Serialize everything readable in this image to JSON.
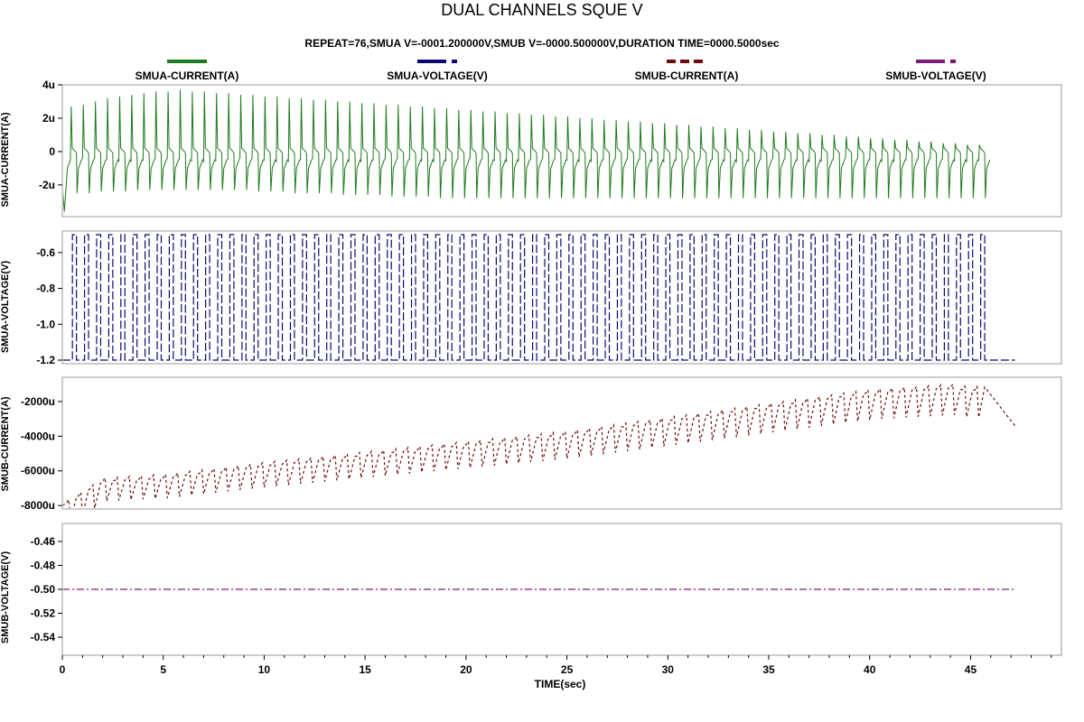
{
  "chart_data": {
    "type": "line",
    "title": "DUAL CHANNELS SQUE V",
    "subtitle": "REPEAT=76,SMUA V=-0001.200000V,SMUB V=-0000.500000V,DURATION TIME=0000.5000sec",
    "xlabel": "TIME(sec)",
    "xlim": [
      0,
      49.5
    ],
    "xticks": [
      0,
      5,
      10,
      15,
      20,
      25,
      30,
      35,
      40,
      45
    ],
    "xtick_labels": [
      "0",
      "5",
      "10",
      "15",
      "20",
      "25",
      "30",
      "35",
      "40",
      "45"
    ],
    "grid": false,
    "legend_position": "top",
    "legend": [
      {
        "label": "SMUA-CURRENT(A)",
        "color": "#1e7b1e",
        "style": "solid"
      },
      {
        "label": "SMUA-VOLTAGE(V)",
        "color": "#0a0a6e",
        "style": "dashed"
      },
      {
        "label": "SMUB-CURRENT(A)",
        "color": "#6e0a0a",
        "style": "dotted"
      },
      {
        "label": "SMUB-VOLTAGE(V)",
        "color": "#7a1a7a",
        "style": "dashdot"
      }
    ],
    "panels": [
      {
        "id": "smua-current",
        "ylabel": "SMUA-CURRENT(A)",
        "ylim": [
          -3.9,
          4.0
        ],
        "yticks": [
          4,
          2,
          0,
          -2
        ],
        "ytick_labels": [
          "4u",
          "2u",
          "0",
          "-2u"
        ],
        "unit_scale": "1e-6",
        "series": {
          "name": "SMUA-CURRENT(A)",
          "color": "#1e7b1e",
          "style": "solid",
          "pulse_period_sec": 0.6,
          "pulse_count": 76,
          "start_sec": 0.1,
          "end_sec": 47.2,
          "peak_values_uA": [
            2.7,
            2.8,
            3.0,
            3.2,
            3.3,
            3.4,
            3.5,
            3.6,
            3.6,
            3.7,
            3.6,
            3.6,
            3.5,
            3.5,
            3.4,
            3.4,
            3.3,
            3.3,
            3.2,
            3.2,
            3.1,
            3.1,
            3.0,
            3.0,
            2.9,
            2.9,
            2.8,
            2.8,
            2.7,
            2.7,
            2.6,
            2.6,
            2.5,
            2.5,
            2.4,
            2.4,
            2.3,
            2.3,
            2.2,
            2.2,
            2.1,
            2.1,
            2.0,
            2.0,
            1.9,
            1.9,
            1.8,
            1.8,
            1.7,
            1.7,
            1.6,
            1.6,
            1.5,
            1.5,
            1.4,
            1.4,
            1.3,
            1.3,
            1.2,
            1.2,
            1.1,
            1.1,
            1.0,
            1.0,
            0.9,
            0.9,
            0.8,
            0.8,
            0.7,
            0.7,
            0.6,
            0.6,
            0.5,
            0.5,
            0.4,
            0.4
          ],
          "trough_values_uA": [
            -2.5,
            -2.5,
            -2.4,
            -2.4,
            -2.4,
            -2.3,
            -2.3,
            -2.3,
            -2.3,
            -2.3,
            -2.3,
            -2.3,
            -2.3,
            -2.3,
            -2.3,
            -2.4,
            -2.4,
            -2.4,
            -2.5,
            -2.5,
            -2.5,
            -2.5,
            -2.6,
            -2.6,
            -2.6,
            -2.6,
            -2.7,
            -2.7,
            -2.7,
            -2.7,
            -2.8,
            -2.8,
            -2.8,
            -2.8,
            -2.8,
            -2.8,
            -2.8,
            -2.8,
            -2.8,
            -2.8,
            -2.8,
            -2.8,
            -2.8,
            -2.8,
            -2.8,
            -2.8,
            -2.8,
            -2.8,
            -2.8,
            -2.8,
            -2.8,
            -2.8,
            -2.8,
            -2.8,
            -2.8,
            -2.8,
            -2.8,
            -2.8,
            -2.8,
            -2.8,
            -2.8,
            -2.8,
            -2.8,
            -2.8,
            -2.8,
            -2.8,
            -2.8,
            -2.8,
            -2.8,
            -2.8,
            -2.8,
            -2.8,
            -2.8,
            -2.8,
            -2.8,
            -2.8
          ],
          "baseline_uA": -0.5,
          "initial_min_uA": -3.6
        }
      },
      {
        "id": "smua-voltage",
        "ylabel": "SMUA-VOLTAGE(V)",
        "ylim": [
          -1.22,
          -0.48
        ],
        "yticks": [
          -0.6,
          -0.8,
          -1.0,
          -1.2
        ],
        "ytick_labels": [
          "-0.6",
          "-0.8",
          "-1.0",
          "-1.2"
        ],
        "series": {
          "name": "SMUA-VOLTAGE(V)",
          "color": "#0a0a6e",
          "style": "dashed",
          "high_V": -0.5,
          "low_V": -1.2,
          "pulse_period_sec": 0.6,
          "pulse_width_sec": 0.2,
          "pulse_count": 76,
          "start_sec": 0.5,
          "end_sec": 47.2
        }
      },
      {
        "id": "smub-current",
        "ylabel": "SMUB-CURRENT(A)",
        "ylim": [
          -8200,
          -600
        ],
        "yticks": [
          -2000,
          -4000,
          -6000,
          -8000
        ],
        "ytick_labels": [
          "-2000u",
          "-4000u",
          "-6000u",
          "-8000u"
        ],
        "unit_scale": "1e-6",
        "series": {
          "name": "SMUB-CURRENT(A)",
          "color": "#6e0a0a",
          "style": "dotted",
          "start_uA": -8000,
          "trend_points": [
            [
              0,
              -8000
            ],
            [
              2,
              -6600
            ],
            [
              5,
              -6400
            ],
            [
              10,
              -5700
            ],
            [
              15,
              -5100
            ],
            [
              20,
              -4500
            ],
            [
              25,
              -3900
            ],
            [
              30,
              -3100
            ],
            [
              35,
              -2300
            ],
            [
              40,
              -1500
            ],
            [
              44,
              -1200
            ],
            [
              45,
              -1400
            ],
            [
              46.5,
              -900
            ],
            [
              47.2,
              -800
            ]
          ],
          "dip_depth_uA": 1600,
          "pulse_period_sec": 0.6,
          "pulse_count": 76,
          "end_sec": 47.2,
          "final_value_uA": -3400
        }
      },
      {
        "id": "smub-voltage",
        "ylabel": "SMUB-VOLTAGE(V)",
        "ylim": [
          -0.555,
          -0.445
        ],
        "yticks": [
          -0.46,
          -0.48,
          -0.5,
          -0.52,
          -0.54
        ],
        "ytick_labels": [
          "-0.46",
          "-0.48",
          "-0.50",
          "-0.52",
          "-0.54"
        ],
        "series": {
          "name": "SMUB-VOLTAGE(V)",
          "color": "#7a1a7a",
          "style": "dashdot",
          "constant_V": -0.5,
          "start_sec": 0,
          "end_sec": 47.2
        }
      }
    ]
  }
}
